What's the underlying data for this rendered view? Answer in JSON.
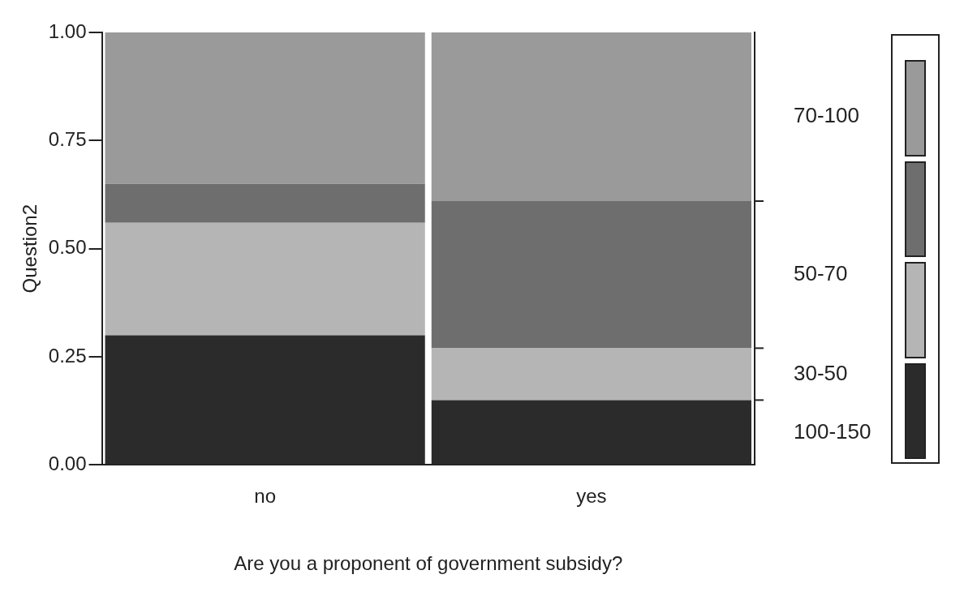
{
  "chart_data": {
    "type": "bar",
    "stacked": true,
    "xlabel": "Are you a proponent of government subsidy?",
    "ylabel": "Question2",
    "categories": [
      "no",
      "yes"
    ],
    "series": [
      {
        "name": "100-150",
        "color": "#2b2b2b",
        "values": [
          0.3,
          0.15
        ]
      },
      {
        "name": "30-50",
        "color": "#b5b5b5",
        "values": [
          0.26,
          0.12
        ]
      },
      {
        "name": "50-70",
        "color": "#6e6e6e",
        "values": [
          0.09,
          0.34
        ]
      },
      {
        "name": "70-100",
        "color": "#9a9a9a",
        "values": [
          0.35,
          0.39
        ]
      }
    ],
    "ylim": [
      0,
      1
    ],
    "yticks": [
      {
        "value": 0,
        "label": "0.00"
      },
      {
        "value": 0.25,
        "label": "0.25"
      },
      {
        "value": 0.5,
        "label": "0.50"
      },
      {
        "value": 0.75,
        "label": "0.75"
      },
      {
        "value": 1,
        "label": "1.00"
      }
    ],
    "grid": false,
    "legend": false
  }
}
